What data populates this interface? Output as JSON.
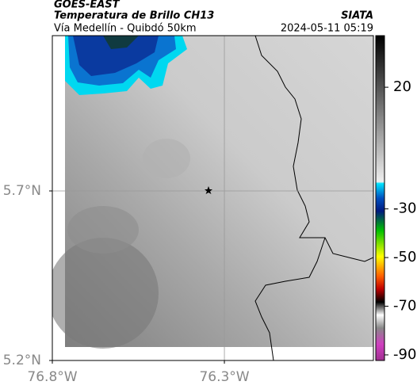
{
  "header": {
    "title": "GOES-EAST",
    "subtitle": "Temperatura de Brillo CH13",
    "route": "Vía Medellín - Quibdó 50km",
    "source": "SIATA",
    "timestamp": "2024-05-11 05:19"
  },
  "map": {
    "xlim": [
      -76.8,
      -75.867
    ],
    "ylim": [
      5.2,
      6.158
    ],
    "xticks": [
      {
        "value": -76.8,
        "label": "76.8°W"
      },
      {
        "value": -76.3,
        "label": "76.3°W"
      }
    ],
    "yticks": [
      {
        "value": 5.2,
        "label": "5.2°N"
      },
      {
        "value": 5.7,
        "label": "5.7°N"
      }
    ]
  },
  "colorbar": {
    "lim": [
      -92.3,
      41.2
    ],
    "ticks": [
      20,
      -30,
      -50,
      -70,
      -90
    ]
  }
}
